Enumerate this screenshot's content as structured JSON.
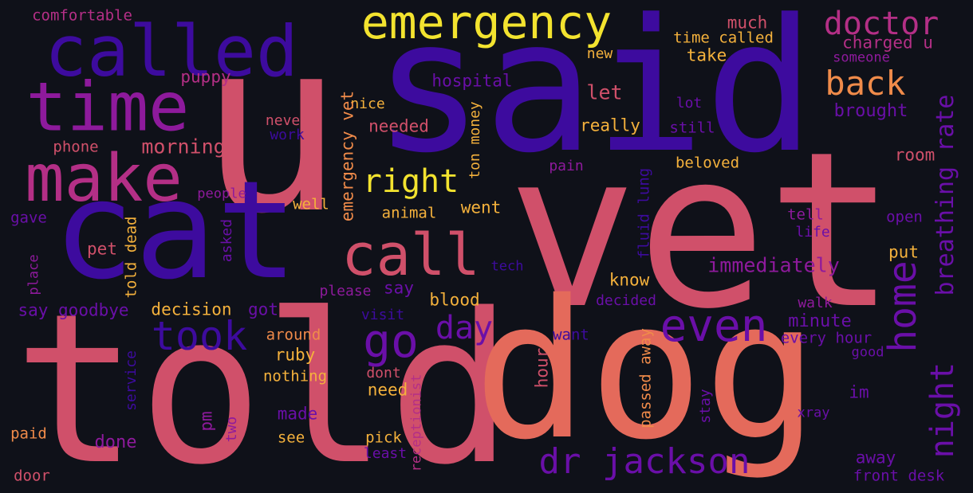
{
  "word_cloud": {
    "palette": {
      "background": "#0f1119",
      "deep_purple": "#3d0b9e",
      "violet": "#6a0fa8",
      "magenta": "#8e1a9c",
      "pink": "#b42f86",
      "rose": "#d0506a",
      "coral": "#e46a5b",
      "orange": "#f08b4a",
      "amber": "#f4b13c",
      "yellow": "#f3e32f"
    },
    "words": [
      {
        "text": "said",
        "color": "#3d0b9e"
      },
      {
        "text": "u",
        "color": "#d0506a"
      },
      {
        "text": "vet",
        "color": "#d0506a"
      },
      {
        "text": "told",
        "color": "#d0506a"
      },
      {
        "text": "dog",
        "color": "#e46a5b"
      },
      {
        "text": "cat",
        "color": "#3d0b9e"
      },
      {
        "text": "called",
        "color": "#3d0b9e"
      },
      {
        "text": "time",
        "color": "#8e1a9c"
      },
      {
        "text": "make",
        "color": "#b42f86"
      },
      {
        "text": "emergency",
        "color": "#f3e32f"
      },
      {
        "text": "call",
        "color": "#d0506a"
      },
      {
        "text": "doctor",
        "color": "#b42f86"
      },
      {
        "text": "back",
        "color": "#f08b4a"
      },
      {
        "text": "home",
        "color": "#6a0fa8"
      },
      {
        "text": "night",
        "color": "#6a0fa8"
      },
      {
        "text": "breathing rate",
        "color": "#6a0fa8"
      },
      {
        "text": "even",
        "color": "#6a0fa8"
      },
      {
        "text": "go",
        "color": "#6a0fa8"
      },
      {
        "text": "took",
        "color": "#3d0b9e"
      },
      {
        "text": "dr jackson",
        "color": "#6a0fa8"
      },
      {
        "text": "right",
        "color": "#f3e32f"
      },
      {
        "text": "day",
        "color": "#6a0fa8"
      },
      {
        "text": "comfortable",
        "color": "#b42f86"
      },
      {
        "text": "puppy",
        "color": "#b42f86"
      },
      {
        "text": "morning",
        "color": "#d0506a"
      },
      {
        "text": "phone",
        "color": "#d0506a"
      },
      {
        "text": "people",
        "color": "#8e1a9c"
      },
      {
        "text": "gave",
        "color": "#6a0fa8"
      },
      {
        "text": "pet",
        "color": "#d0506a"
      },
      {
        "text": "told dead",
        "color": "#f4b13c"
      },
      {
        "text": "asked",
        "color": "#6a0fa8"
      },
      {
        "text": "place",
        "color": "#8e1a9c"
      },
      {
        "text": "say goodbye",
        "color": "#6a0fa8"
      },
      {
        "text": "decision",
        "color": "#f4b13c"
      },
      {
        "text": "service",
        "color": "#3d0b9e"
      },
      {
        "text": "paid",
        "color": "#f08b4a"
      },
      {
        "text": "door",
        "color": "#d0506a"
      },
      {
        "text": "never",
        "color": "#d0506a"
      },
      {
        "text": "work",
        "color": "#3d0b9e"
      },
      {
        "text": "nice",
        "color": "#f4b13c"
      },
      {
        "text": "emergency vet",
        "color": "#f08b4a"
      },
      {
        "text": "needed",
        "color": "#d0506a"
      },
      {
        "text": "hospital",
        "color": "#6a0fa8"
      },
      {
        "text": "ton money",
        "color": "#f4b13c"
      },
      {
        "text": "well",
        "color": "#f4b13c"
      },
      {
        "text": "animal",
        "color": "#f4b13c"
      },
      {
        "text": "went",
        "color": "#f4b13c"
      },
      {
        "text": "say",
        "color": "#6a0fa8"
      },
      {
        "text": "please",
        "color": "#8e1a9c"
      },
      {
        "text": "tech",
        "color": "#3d0b9e"
      },
      {
        "text": "blood",
        "color": "#f4b13c"
      },
      {
        "text": "got",
        "color": "#6a0fa8"
      },
      {
        "text": "visit",
        "color": "#3d0b9e"
      },
      {
        "text": "around",
        "color": "#f08b4a"
      },
      {
        "text": "ruby",
        "color": "#f4b13c"
      },
      {
        "text": "nothing",
        "color": "#f4b13c"
      },
      {
        "text": "need",
        "color": "#f4b13c"
      },
      {
        "text": "dont",
        "color": "#d0506a"
      },
      {
        "text": "made",
        "color": "#6a0fa8"
      },
      {
        "text": "pm",
        "color": "#8e1a9c"
      },
      {
        "text": "done",
        "color": "#8e1a9c"
      },
      {
        "text": "two",
        "color": "#8e1a9c"
      },
      {
        "text": "see",
        "color": "#f4b13c"
      },
      {
        "text": "pick",
        "color": "#f4b13c"
      },
      {
        "text": "least",
        "color": "#6a0fa8"
      },
      {
        "text": "receptionist",
        "color": "#b42f86"
      },
      {
        "text": "hour",
        "color": "#d0506a"
      },
      {
        "text": "passed away",
        "color": "#f08b4a"
      },
      {
        "text": "want",
        "color": "#3d0b9e"
      },
      {
        "text": "know",
        "color": "#f4b13c"
      },
      {
        "text": "decided",
        "color": "#6a0fa8"
      },
      {
        "text": "immediately",
        "color": "#8e1a9c"
      },
      {
        "text": "fluid lung",
        "color": "#3d0b9e"
      },
      {
        "text": "pain",
        "color": "#8e1a9c"
      },
      {
        "text": "beloved",
        "color": "#f4b13c"
      },
      {
        "text": "let",
        "color": "#d0506a"
      },
      {
        "text": "really",
        "color": "#f4b13c"
      },
      {
        "text": "much",
        "color": "#d0506a"
      },
      {
        "text": "time called",
        "color": "#f4b13c"
      },
      {
        "text": "new",
        "color": "#f4b13c"
      },
      {
        "text": "take",
        "color": "#f4b13c"
      },
      {
        "text": "charged u",
        "color": "#b42f86"
      },
      {
        "text": "someone",
        "color": "#8e1a9c"
      },
      {
        "text": "lot",
        "color": "#6a0fa8"
      },
      {
        "text": "still",
        "color": "#6a0fa8"
      },
      {
        "text": "brought",
        "color": "#6a0fa8"
      },
      {
        "text": "room",
        "color": "#d0506a"
      },
      {
        "text": "tell",
        "color": "#8e1a9c"
      },
      {
        "text": "life",
        "color": "#6a0fa8"
      },
      {
        "text": "open",
        "color": "#6a0fa8"
      },
      {
        "text": "put",
        "color": "#f4b13c"
      },
      {
        "text": "minute",
        "color": "#6a0fa8"
      },
      {
        "text": "walk",
        "color": "#8e1a9c"
      },
      {
        "text": "every hour",
        "color": "#6a0fa8"
      },
      {
        "text": "good",
        "color": "#6a0fa8"
      },
      {
        "text": "im",
        "color": "#6a0fa8"
      },
      {
        "text": "stay",
        "color": "#6a0fa8"
      },
      {
        "text": "xray",
        "color": "#6a0fa8"
      },
      {
        "text": "away",
        "color": "#6a0fa8"
      },
      {
        "text": "front desk",
        "color": "#6a0fa8"
      }
    ]
  }
}
